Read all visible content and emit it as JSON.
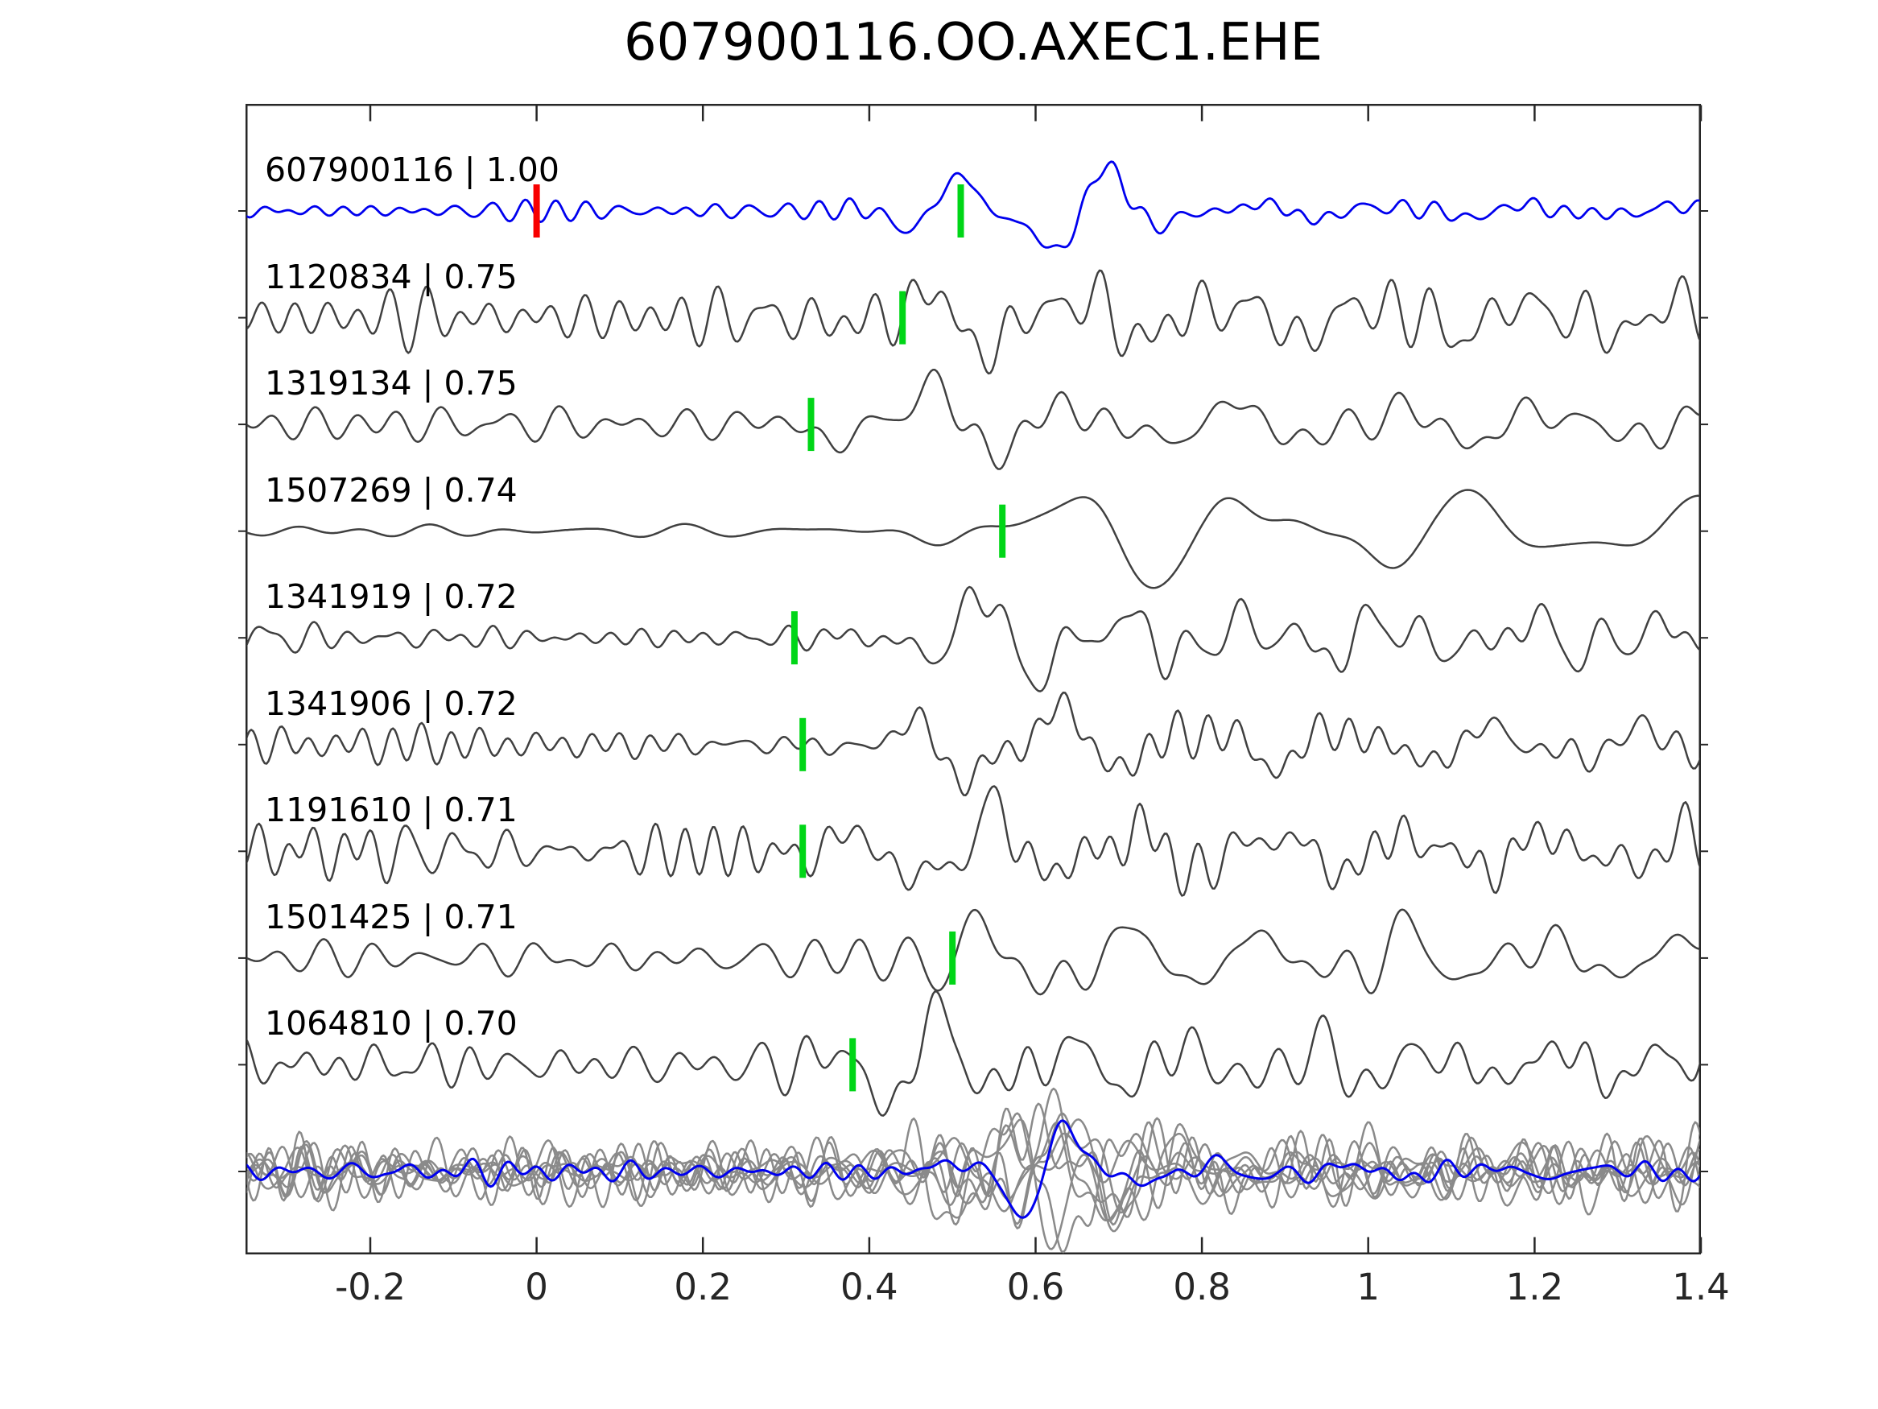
{
  "title": "607900116.OO.AXEC1.EHE",
  "axis": {
    "xlim": [
      -0.35,
      1.4
    ],
    "x_tick_values": [
      -0.2,
      0,
      0.2,
      0.4,
      0.6,
      0.8,
      1.0,
      1.2,
      1.4
    ],
    "x_tick_labels": [
      "-0.2",
      "0",
      "0.2",
      "0.4",
      "0.6",
      "0.8",
      "1",
      "1.2",
      "1.4"
    ]
  },
  "colors": {
    "template_trace": "#0000ee",
    "match_trace": "#404040",
    "overlay_trace": "#8a8a8a",
    "pick_marker": "#00d617",
    "origin_marker": "#f80000",
    "axis": "#262626",
    "label_text": "#000000",
    "tick_label_text": "#262626"
  },
  "chart_data": {
    "type": "line",
    "title": "607900116.OO.AXEC1.EHE",
    "xlabel": "",
    "ylabel": "",
    "xlim": [
      -0.35,
      1.4
    ],
    "x_ticks": [
      -0.2,
      0,
      0.2,
      0.4,
      0.6,
      0.8,
      1.0,
      1.2,
      1.4
    ],
    "grid": false,
    "legend": false,
    "description": "Template waveform (blue) and 8 correlated event waveforms (dark gray), each annotated with a green pick-time marker; red marker at t=0 on the template; bottom row overlays all waveforms in gray with the template in blue.",
    "traces": [
      {
        "row": 0,
        "event_id": "607900116",
        "correlation": "1.00",
        "label": "607900116 | 1.00",
        "pick_time": 0.51,
        "origin_time": 0.0,
        "is_template": true
      },
      {
        "row": 1,
        "event_id": "1120834",
        "correlation": "0.75",
        "label": "1120834 | 0.75",
        "pick_time": 0.44
      },
      {
        "row": 2,
        "event_id": "1319134",
        "correlation": "0.75",
        "label": "1319134 | 0.75",
        "pick_time": 0.33
      },
      {
        "row": 3,
        "event_id": "1507269",
        "correlation": "0.74",
        "label": "1507269 | 0.74",
        "pick_time": 0.56
      },
      {
        "row": 4,
        "event_id": "1341919",
        "correlation": "0.72",
        "label": "1341919 | 0.72",
        "pick_time": 0.31
      },
      {
        "row": 5,
        "event_id": "1341906",
        "correlation": "0.72",
        "label": "1341906 | 0.72",
        "pick_time": 0.32
      },
      {
        "row": 6,
        "event_id": "1191610",
        "correlation": "0.71",
        "label": "1191610 | 0.71",
        "pick_time": 0.32
      },
      {
        "row": 7,
        "event_id": "1501425",
        "correlation": "0.71",
        "label": "1501425 | 0.71",
        "pick_time": 0.5
      },
      {
        "row": 8,
        "event_id": "1064810",
        "correlation": "0.70",
        "label": "1064810 | 0.70",
        "pick_time": 0.38
      },
      {
        "row": 9,
        "overlay": true,
        "label": ""
      }
    ]
  }
}
